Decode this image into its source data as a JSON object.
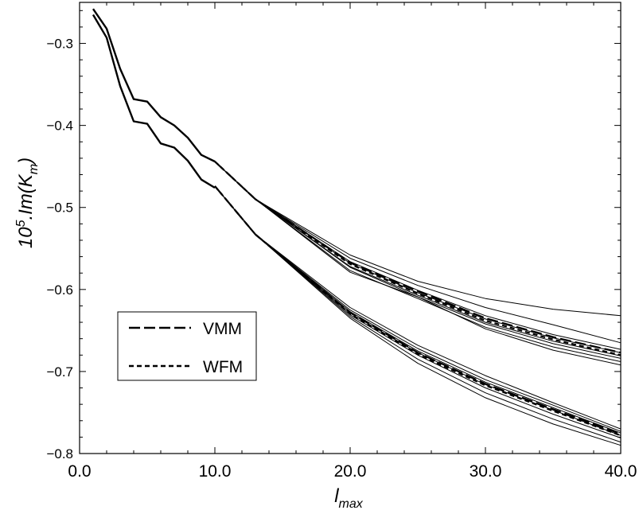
{
  "chart_data": {
    "type": "line",
    "xlabel": {
      "main": "l",
      "sub": "max"
    },
    "ylabel": {
      "main": "10",
      "sup": "5",
      "mid": ".Im(K",
      "sub": "m",
      "end": ")"
    },
    "xlim": [
      0,
      40
    ],
    "ylim": [
      -0.8,
      -0.25
    ],
    "xticks": [
      0,
      10,
      20,
      30,
      40
    ],
    "xtick_labels": [
      "0.0",
      "10.0",
      "20.0",
      "30.0",
      "40.0"
    ],
    "yticks": [
      -0.8,
      -0.7,
      -0.6,
      -0.5,
      -0.4,
      -0.3
    ],
    "ytick_labels": [
      "−0.8",
      "−0.7",
      "−0.6",
      "−0.5",
      "−0.4",
      "−0.3"
    ],
    "grid": false,
    "legend": {
      "placement": "left-center",
      "entries": [
        {
          "label": "VMM",
          "style": "long-dash"
        },
        {
          "label": "WFM",
          "style": "short-dash"
        }
      ]
    },
    "series": [
      {
        "group": "upper",
        "style": "thick",
        "x": [
          1,
          2,
          3,
          4,
          5,
          6,
          7,
          8,
          9,
          10
        ],
        "y": [
          -0.258,
          -0.282,
          -0.331,
          -0.368,
          -0.371,
          -0.39,
          -0.4,
          -0.415,
          -0.436,
          -0.444
        ]
      },
      {
        "group": "lower",
        "style": "thick",
        "x": [
          1,
          2,
          3,
          4,
          5,
          6,
          7,
          8,
          9,
          10
        ],
        "y": [
          -0.265,
          -0.293,
          -0.352,
          -0.395,
          -0.398,
          -0.422,
          -0.427,
          -0.443,
          -0.466,
          -0.476
        ]
      },
      {
        "group": "upper",
        "style": "thin",
        "x": [
          10,
          13,
          20,
          25,
          30,
          35,
          40
        ],
        "y": [
          -0.444,
          -0.49,
          -0.558,
          -0.59,
          -0.611,
          -0.624,
          -0.632
        ]
      },
      {
        "group": "upper",
        "style": "thin",
        "x": [
          10,
          13,
          20,
          25,
          30,
          35,
          40
        ],
        "y": [
          -0.444,
          -0.49,
          -0.562,
          -0.595,
          -0.622,
          -0.643,
          -0.665
        ]
      },
      {
        "group": "upper",
        "style": "thin",
        "x": [
          10,
          13,
          20,
          25,
          30,
          35,
          40
        ],
        "y": [
          -0.444,
          -0.49,
          -0.566,
          -0.601,
          -0.632,
          -0.655,
          -0.673
        ]
      },
      {
        "group": "upper",
        "style": "thin",
        "x": [
          10,
          13,
          20,
          25,
          30,
          35,
          40
        ],
        "y": [
          -0.444,
          -0.49,
          -0.568,
          -0.604,
          -0.636,
          -0.659,
          -0.677
        ]
      },
      {
        "group": "upper",
        "style": "thin",
        "x": [
          10,
          13,
          20,
          25,
          30,
          35,
          40
        ],
        "y": [
          -0.444,
          -0.49,
          -0.572,
          -0.607,
          -0.64,
          -0.663,
          -0.681
        ]
      },
      {
        "group": "upper",
        "style": "thin",
        "x": [
          10,
          13,
          20,
          25,
          30,
          35,
          40
        ],
        "y": [
          -0.444,
          -0.49,
          -0.573,
          -0.609,
          -0.642,
          -0.666,
          -0.684
        ]
      },
      {
        "group": "upper",
        "style": "thin",
        "x": [
          10,
          13,
          20,
          25,
          30,
          35,
          40
        ],
        "y": [
          -0.444,
          -0.49,
          -0.577,
          -0.611,
          -0.646,
          -0.67,
          -0.688
        ]
      },
      {
        "group": "upper",
        "style": "thin",
        "x": [
          10,
          13,
          20,
          25,
          30,
          35,
          40
        ],
        "y": [
          -0.444,
          -0.49,
          -0.579,
          -0.609,
          -0.648,
          -0.674,
          -0.692
        ]
      },
      {
        "group": "upper",
        "style": "long-dash",
        "legend": "VMM",
        "x": [
          10,
          13,
          20,
          25,
          30,
          35,
          40
        ],
        "y": [
          -0.444,
          -0.49,
          -0.567,
          -0.602,
          -0.635,
          -0.658,
          -0.677
        ]
      },
      {
        "group": "upper",
        "style": "short-dash",
        "legend": "WFM",
        "x": [
          10,
          13,
          20,
          25,
          30,
          35,
          40
        ],
        "y": [
          -0.444,
          -0.49,
          -0.569,
          -0.605,
          -0.638,
          -0.661,
          -0.68
        ]
      },
      {
        "group": "lower",
        "style": "thin",
        "x": [
          10,
          13,
          20,
          25,
          30,
          35,
          40
        ],
        "y": [
          -0.474,
          -0.533,
          -0.622,
          -0.668,
          -0.705,
          -0.738,
          -0.77
        ]
      },
      {
        "group": "lower",
        "style": "thin",
        "x": [
          10,
          13,
          20,
          25,
          30,
          35,
          40
        ],
        "y": [
          -0.474,
          -0.533,
          -0.625,
          -0.672,
          -0.71,
          -0.741,
          -0.773
        ]
      },
      {
        "group": "lower",
        "style": "thin",
        "x": [
          10,
          13,
          20,
          25,
          30,
          35,
          40
        ],
        "y": [
          -0.474,
          -0.533,
          -0.627,
          -0.675,
          -0.713,
          -0.744,
          -0.775
        ]
      },
      {
        "group": "lower",
        "style": "thin",
        "x": [
          10,
          13,
          20,
          25,
          30,
          35,
          40
        ],
        "y": [
          -0.474,
          -0.533,
          -0.629,
          -0.677,
          -0.716,
          -0.747,
          -0.778
        ]
      },
      {
        "group": "lower",
        "style": "thin",
        "x": [
          10,
          13,
          20,
          25,
          30,
          35,
          40
        ],
        "y": [
          -0.474,
          -0.533,
          -0.631,
          -0.68,
          -0.72,
          -0.752,
          -0.781
        ]
      },
      {
        "group": "lower",
        "style": "thin",
        "x": [
          10,
          13,
          20,
          25,
          30,
          35,
          40
        ],
        "y": [
          -0.474,
          -0.533,
          -0.633,
          -0.685,
          -0.726,
          -0.758,
          -0.786
        ]
      },
      {
        "group": "lower",
        "style": "thin",
        "x": [
          10,
          13,
          20,
          25,
          30,
          35,
          40
        ],
        "y": [
          -0.474,
          -0.533,
          -0.635,
          -0.69,
          -0.732,
          -0.764,
          -0.79
        ]
      },
      {
        "group": "lower",
        "style": "long-dash",
        "legend": "VMM",
        "x": [
          10,
          13,
          20,
          25,
          30,
          35,
          40
        ],
        "y": [
          -0.474,
          -0.533,
          -0.628,
          -0.677,
          -0.715,
          -0.746,
          -0.776
        ]
      },
      {
        "group": "lower",
        "style": "short-dash",
        "legend": "WFM",
        "x": [
          10,
          13,
          20,
          25,
          30,
          35,
          40
        ],
        "y": [
          -0.474,
          -0.533,
          -0.63,
          -0.679,
          -0.717,
          -0.748,
          -0.778
        ]
      }
    ]
  }
}
